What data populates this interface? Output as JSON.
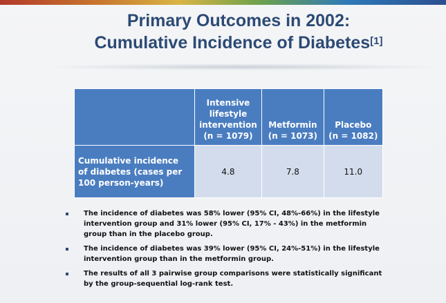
{
  "title": {
    "line1": "Primary Outcomes in 2002:",
    "line2": "Cumulative Incidence of Diabetes",
    "citation": "[1]"
  },
  "table": {
    "columns": [
      {
        "line1": "Intensive",
        "line2": "lifestyle",
        "line3": "intervention",
        "n": "(n = 1079)"
      },
      {
        "line1": "Metformin",
        "n": "(n = 1073)"
      },
      {
        "line1": "Placebo",
        "n": "(n = 1082)"
      }
    ],
    "row": {
      "label_line1": "Cumulative incidence",
      "label_line2": "of diabetes (cases per",
      "label_line3": "100 person-years)",
      "values": [
        "4.8",
        "7.8",
        "11.0"
      ]
    }
  },
  "bullets": [
    "The incidence of diabetes was 58% lower (95% CI, 48%-66%) in the lifestyle intervention group and 31% lower (95% CI, 17% - 43%) in the metformin group than in the placebo group.",
    "The incidence of diabetes was 39% lower (95% CI, 24%-51%) in the lifestyle intervention group than in the metformin group.",
    "The results of all 3 pairwise group comparisons were statistically significant by the group-sequential log-rank test."
  ],
  "colors": {
    "title": "#2c4a74",
    "table_header": "#4a7dc0",
    "table_cell": "#d3dcec"
  }
}
